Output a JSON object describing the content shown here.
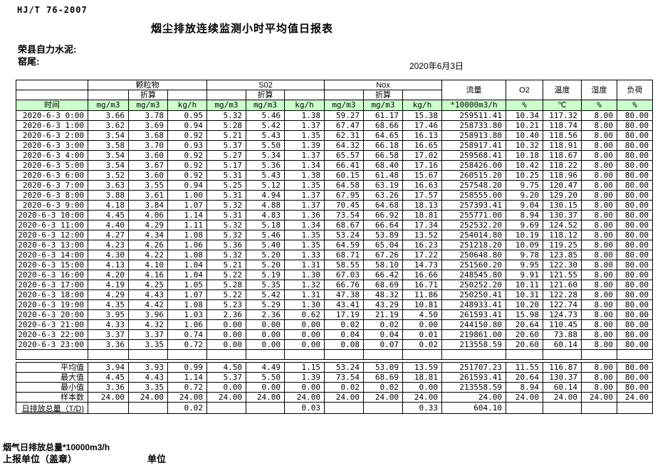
{
  "header": {
    "standard": "HJ/T  76-2007",
    "title": "烟尘排放连续监测小时平均值日报表",
    "company": "荣县自力水泥:",
    "station": "窑尾:",
    "date": "2020年6月3日"
  },
  "colors": {
    "header_green": "#ccffcc",
    "border": "#000000",
    "background": "#ffffff"
  },
  "table": {
    "time_header": "时间",
    "groups": [
      {
        "label": "颗粒物",
        "sub": "折算",
        "units": [
          "mg/m3",
          "mg/m3",
          "kg/h"
        ]
      },
      {
        "label": "S02",
        "sub": "折算",
        "units": [
          "mg/m3",
          "mg/m3",
          "kg/h"
        ]
      },
      {
        "label": "Nox",
        "sub": "折算",
        "units": [
          "mg/m3",
          "mg/m3",
          "kg/h"
        ]
      }
    ],
    "single_columns": [
      {
        "label": "流量",
        "unit": "*10000m3/h"
      },
      {
        "label": "O2",
        "unit": "%"
      },
      {
        "label": "温度",
        "unit": "℃"
      },
      {
        "label": "湿度",
        "unit": "%"
      },
      {
        "label": "负荷",
        "unit": "%"
      }
    ],
    "rows": [
      {
        "time": "2020-6-3 0:00",
        "values": [
          "3.66",
          "3.78",
          "0.95",
          "5.32",
          "5.46",
          "1.38",
          "59.27",
          "61.17",
          "15.38",
          "259511.41",
          "10.34",
          "117.32",
          "8.00",
          "80.00"
        ]
      },
      {
        "time": "2020-6-3 1:00",
        "values": [
          "3.62",
          "3.69",
          "0.94",
          "5.28",
          "5.42",
          "1.37",
          "67.47",
          "68.66",
          "17.46",
          "258733.80",
          "10.21",
          "118.74",
          "8.00",
          "80.00"
        ]
      },
      {
        "time": "2020-6-3 2:00",
        "values": [
          "3.54",
          "3.68",
          "0.92",
          "5.21",
          "5.43",
          "1.35",
          "62.31",
          "64.65",
          "16.13",
          "258913.80",
          "10.40",
          "118.56",
          "8.00",
          "80.00"
        ]
      },
      {
        "time": "2020-6-3 3:00",
        "values": [
          "3.58",
          "3.70",
          "0.93",
          "5.37",
          "5.50",
          "1.39",
          "64.32",
          "66.18",
          "16.65",
          "258917.41",
          "10.32",
          "118.91",
          "8.00",
          "80.00"
        ]
      },
      {
        "time": "2020-6-3 4:00",
        "values": [
          "3.54",
          "3.60",
          "0.92",
          "5.27",
          "5.34",
          "1.37",
          "65.57",
          "66.58",
          "17.02",
          "259568.41",
          "10.18",
          "118.67",
          "8.00",
          "80.00"
        ]
      },
      {
        "time": "2020-6-3 5:00",
        "values": [
          "3.54",
          "3.67",
          "0.92",
          "5.17",
          "5.36",
          "1.34",
          "66.41",
          "68.40",
          "17.16",
          "258426.00",
          "10.42",
          "118.22",
          "8.00",
          "80.00"
        ]
      },
      {
        "time": "2020-6-3 6:00",
        "values": [
          "3.52",
          "3.60",
          "0.92",
          "5.31",
          "5.43",
          "1.38",
          "60.15",
          "61.48",
          "15.67",
          "260515.20",
          "10.25",
          "118.96",
          "8.00",
          "80.00"
        ]
      },
      {
        "time": "2020-6-3 7:00",
        "values": [
          "3.63",
          "3.55",
          "0.94",
          "5.25",
          "5.12",
          "1.35",
          "64.58",
          "63.19",
          "16.63",
          "257548.20",
          "9.75",
          "120.47",
          "8.00",
          "80.00"
        ]
      },
      {
        "time": "2020-6-3 8:00",
        "values": [
          "3.88",
          "3.61",
          "1.00",
          "5.31",
          "4.94",
          "1.37",
          "67.95",
          "63.26",
          "17.57",
          "258555.00",
          "9.20",
          "129.20",
          "8.00",
          "80.00"
        ]
      },
      {
        "time": "2020-6-3 9:00",
        "values": [
          "4.18",
          "3.84",
          "1.07",
          "5.32",
          "4.88",
          "1.37",
          "70.45",
          "64.68",
          "18.13",
          "257393.41",
          "9.04",
          "130.15",
          "8.00",
          "80.00"
        ]
      },
      {
        "time": "2020-6-3 10:00",
        "values": [
          "4.45",
          "4.06",
          "1.14",
          "5.31",
          "4.83",
          "1.36",
          "73.54",
          "66.92",
          "18.81",
          "255771.00",
          "8.94",
          "130.37",
          "8.00",
          "80.00"
        ]
      },
      {
        "time": "2020-6-3 11:00",
        "values": [
          "4.40",
          "4.29",
          "1.11",
          "5.32",
          "5.18",
          "1.34",
          "68.67",
          "66.64",
          "17.34",
          "252532.20",
          "9.69",
          "124.52",
          "8.00",
          "80.00"
        ]
      },
      {
        "time": "2020-6-3 12:00",
        "values": [
          "4.27",
          "4.34",
          "1.08",
          "5.32",
          "5.46",
          "1.35",
          "53.24",
          "53.89",
          "13.52",
          "254014.80",
          "10.19",
          "118.12",
          "8.00",
          "80.00"
        ]
      },
      {
        "time": "2020-6-3 13:00",
        "values": [
          "4.23",
          "4.26",
          "1.06",
          "5.36",
          "5.40",
          "1.35",
          "64.59",
          "65.04",
          "16.23",
          "251218.20",
          "10.09",
          "119.25",
          "8.00",
          "80.00"
        ]
      },
      {
        "time": "2020-6-3 14:00",
        "values": [
          "4.30",
          "4.22",
          "1.08",
          "5.32",
          "5.20",
          "1.33",
          "68.71",
          "67.26",
          "17.22",
          "250648.80",
          "9.78",
          "123.85",
          "8.00",
          "80.00"
        ]
      },
      {
        "time": "2020-6-3 15:00",
        "values": [
          "4.13",
          "4.10",
          "1.04",
          "5.21",
          "5.20",
          "1.31",
          "58.55",
          "58.10",
          "14.73",
          "251560.20",
          "9.95",
          "122.30",
          "8.00",
          "80.00"
        ]
      },
      {
        "time": "2020-6-3 16:00",
        "values": [
          "4.20",
          "4.16",
          "1.04",
          "5.22",
          "5.19",
          "1.30",
          "67.03",
          "66.42",
          "16.66",
          "248545.80",
          "9.91",
          "121.55",
          "8.00",
          "80.00"
        ]
      },
      {
        "time": "2020-6-3 17:00",
        "values": [
          "4.19",
          "4.25",
          "1.05",
          "5.28",
          "5.35",
          "1.32",
          "66.76",
          "68.69",
          "16.71",
          "250252.20",
          "10.11",
          "121.60",
          "8.00",
          "80.00"
        ]
      },
      {
        "time": "2020-6-3 18:00",
        "values": [
          "4.29",
          "4.43",
          "1.07",
          "5.22",
          "5.42",
          "1.31",
          "47.38",
          "48.32",
          "11.86",
          "250250.41",
          "10.31",
          "122.28",
          "8.00",
          "80.00"
        ]
      },
      {
        "time": "2020-6-3 19:00",
        "values": [
          "4.35",
          "4.42",
          "1.08",
          "5.23",
          "5.29",
          "1.30",
          "43.41",
          "43.29",
          "10.81",
          "248933.41",
          "10.20",
          "122.74",
          "8.00",
          "80.00"
        ]
      },
      {
        "time": "2020-6-3 20:00",
        "values": [
          "3.95",
          "3.96",
          "1.03",
          "2.36",
          "2.36",
          "0.62",
          "17.19",
          "21.19",
          "4.50",
          "261593.41",
          "15.98",
          "124.73",
          "8.00",
          "80.00"
        ]
      },
      {
        "time": "2020-6-3 21:00",
        "values": [
          "4.33",
          "4.32",
          "1.06",
          "0.00",
          "0.00",
          "0.00",
          "0.02",
          "0.02",
          "0.00",
          "244150.80",
          "20.64",
          "110.45",
          "8.00",
          "80.00"
        ]
      },
      {
        "time": "2020-6-3 22:00",
        "values": [
          "3.37",
          "3.37",
          "0.74",
          "0.00",
          "0.00",
          "0.00",
          "0.04",
          "0.04",
          "0.01",
          "219861.00",
          "20.60",
          "73.88",
          "8.00",
          "80.00"
        ]
      },
      {
        "time": "2020-6-3 23:00",
        "values": [
          "3.36",
          "3.35",
          "0.72",
          "0.00",
          "0.00",
          "0.00",
          "0.08",
          "0.07",
          "0.02",
          "213558.59",
          "20.60",
          "60.14",
          "8.00",
          "80.00"
        ]
      }
    ],
    "summary": [
      {
        "label": "平均值",
        "values": [
          "3.94",
          "3.93",
          "0.99",
          "4.50",
          "4.49",
          "1.15",
          "53.24",
          "53.09",
          "13.59",
          "251707.23",
          "11.55",
          "116.87",
          "8.00",
          "80.00"
        ]
      },
      {
        "label": "最大值",
        "values": [
          "4.45",
          "4.43",
          "1.14",
          "5.37",
          "5.50",
          "1.39",
          "73.54",
          "68.69",
          "18.81",
          "261593.41",
          "20.64",
          "130.37",
          "8.00",
          "80.00"
        ]
      },
      {
        "label": "最小值",
        "values": [
          "3.36",
          "3.35",
          "0.72",
          "0.00",
          "0.00",
          "0.00",
          "0.02",
          "0.02",
          "0.00",
          "213558.59",
          "8.94",
          "60.14",
          "8.00",
          "80.00"
        ]
      },
      {
        "label": "样本数",
        "align": "center",
        "values": [
          "24.00",
          "24.00",
          "24.00",
          "24.00",
          "24.00",
          "24.00",
          "24.00",
          "24.00",
          "24.00",
          "24.00",
          "24.00",
          "24.00",
          "24.00",
          "24.00"
        ]
      },
      {
        "label": "日排放总量（T/D)",
        "overflow": true,
        "values": [
          "",
          "",
          "0.02",
          "",
          "",
          "0.03",
          "",
          "",
          "0.33",
          "604.10",
          "",
          "",
          "",
          ""
        ]
      }
    ]
  },
  "footer": {
    "note": "烟气日排放总量*10000m3/h",
    "report_unit": "上报单位（盖章）",
    "unit": "单位"
  }
}
